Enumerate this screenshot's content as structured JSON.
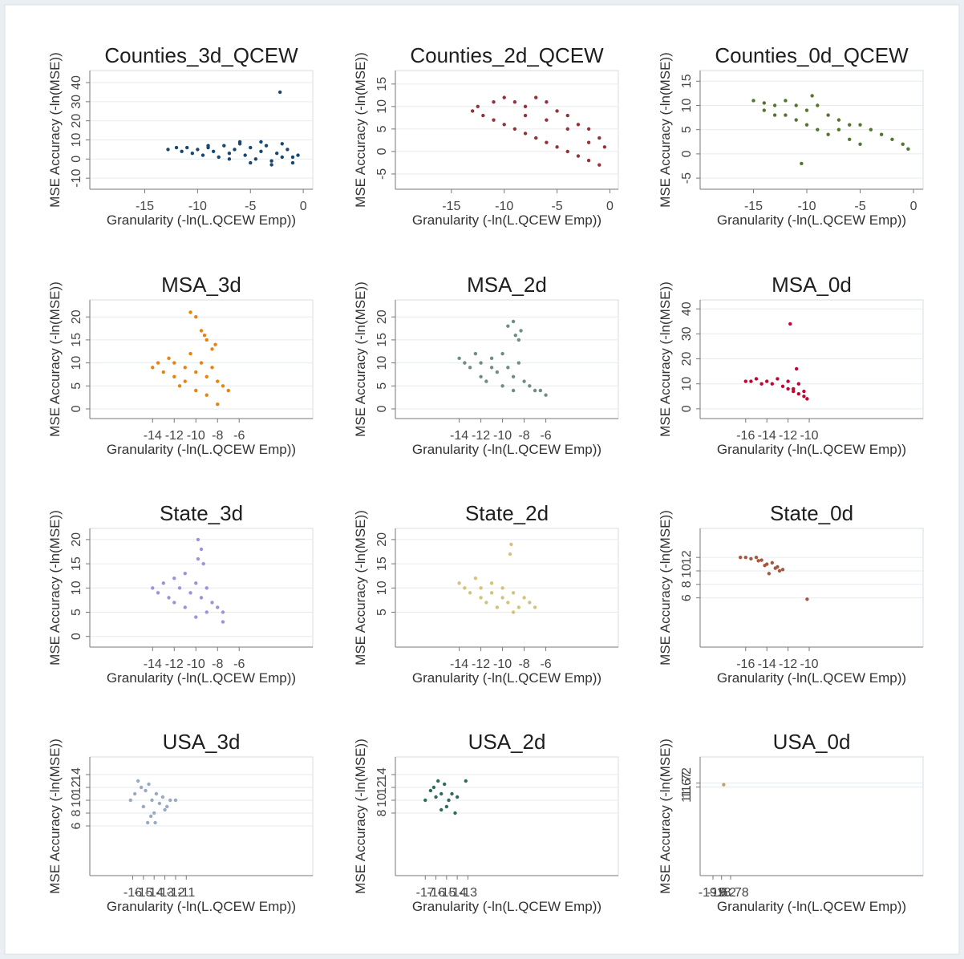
{
  "chart_data": [
    {
      "type": "scatter",
      "title": "Counties_3d_QCEW",
      "x_label": "Granularity (-ln(L.QCEW Emp))",
      "y_label": "MSE Accuracy (-ln(MSE))",
      "color": "#1a476f",
      "grid": true,
      "xlim": [
        -20.2,
        0.9
      ],
      "ylim": [
        -15.8,
        46.3
      ],
      "xticks": [
        -15,
        -10,
        -5,
        0
      ],
      "yticks": [
        -10,
        0,
        10,
        20,
        30,
        40
      ],
      "x": [
        -12.8,
        -12,
        -11.5,
        -11,
        -10.5,
        -10,
        -9.5,
        -9,
        -8.5,
        -8,
        -7.5,
        -7,
        -6.5,
        -6,
        -5.5,
        -5,
        -4.5,
        -4,
        -3.5,
        -3,
        -2.5,
        -2,
        -1.5,
        -1,
        -0.5,
        -9,
        -7,
        -5,
        -3,
        -1,
        -6,
        -4,
        -2,
        -2.2
      ],
      "values": [
        5,
        6,
        4,
        6,
        3,
        5,
        2,
        6,
        4,
        1,
        7,
        3,
        5,
        8,
        2,
        6,
        0,
        4,
        7,
        -1,
        3,
        1,
        5,
        -2,
        2,
        7,
        0,
        -2,
        -3,
        1,
        9,
        9,
        8,
        35
      ]
    },
    {
      "type": "scatter",
      "title": "Counties_2d_QCEW",
      "x_label": "Granularity (-ln(L.QCEW Emp))",
      "y_label": "MSE Accuracy (-ln(MSE))",
      "color": "#90353b",
      "grid": true,
      "xlim": [
        -20.3,
        0.8
      ],
      "ylim": [
        -8.4,
        18
      ],
      "xticks": [
        -15,
        -10,
        -5,
        0
      ],
      "yticks": [
        -5,
        0,
        5,
        10,
        15
      ],
      "x": [
        -13,
        -12.5,
        -12,
        -11,
        -11,
        -10,
        -10,
        -9,
        -9,
        -8,
        -8,
        -7,
        -7,
        -6,
        -6,
        -5,
        -5,
        -4,
        -4,
        -3,
        -3,
        -2,
        -2,
        -1,
        -1,
        -0.5,
        -8,
        -6,
        -4,
        -2
      ],
      "values": [
        9,
        10,
        8,
        11,
        7,
        12,
        6,
        11,
        5,
        10,
        4,
        12,
        3,
        11,
        2,
        9,
        1,
        8,
        0,
        6,
        -1,
        5,
        -2,
        3,
        -3,
        1,
        8,
        7,
        5,
        2
      ]
    },
    {
      "type": "scatter",
      "title": "Counties_0d_QCEW",
      "x_label": "Granularity (-ln(L.QCEW Emp))",
      "y_label": "MSE Accuracy (-ln(MSE))",
      "color": "#55752f",
      "grid": true,
      "xlim": [
        -20,
        0.9
      ],
      "ylim": [
        -7.3,
        17.2
      ],
      "xticks": [
        -15,
        -10,
        -5,
        0
      ],
      "yticks": [
        -5,
        0,
        5,
        10,
        15
      ],
      "x": [
        -15,
        -14,
        -14,
        -13,
        -13,
        -12,
        -12,
        -11,
        -11,
        -10,
        -10,
        -9,
        -9,
        -8,
        -8,
        -7,
        -7,
        -6,
        -6,
        -5,
        -5,
        -4,
        -3,
        -2,
        -1,
        -0.5,
        -9.5,
        -10.5
      ],
      "values": [
        11,
        10.5,
        9,
        10,
        8,
        11,
        8,
        10,
        7,
        9,
        6,
        10,
        5,
        8,
        4,
        7,
        5,
        6,
        3,
        6,
        2,
        5,
        4,
        3,
        2,
        1,
        12,
        -2
      ]
    },
    {
      "type": "scatter",
      "title": "MSA_3d",
      "x_label": "Granularity (-ln(L.QCEW Emp))",
      "y_label": "MSE Accuracy (-ln(MSE))",
      "color": "#e8840e",
      "grid": true,
      "xlim": [
        -19.8,
        0.8
      ],
      "ylim": [
        -2.1,
        23.7
      ],
      "xticks": [
        -14,
        -12,
        -10,
        -8,
        -6
      ],
      "yticks": [
        0,
        5,
        10,
        15,
        20
      ],
      "x": [
        -14,
        -13.5,
        -13,
        -12.5,
        -12,
        -12,
        -11.5,
        -11,
        -11,
        -10.5,
        -10,
        -10,
        -9.5,
        -9,
        -9,
        -8.5,
        -8,
        -7.5,
        -7,
        -10.5,
        -10,
        -9.5,
        -9.2,
        -9,
        -8.5,
        -8.2,
        -8
      ],
      "values": [
        9,
        10,
        8,
        11,
        7,
        10,
        5,
        9,
        6,
        12,
        8,
        4,
        10,
        7,
        3,
        9,
        6,
        5,
        4,
        21,
        20,
        17,
        16,
        15,
        13,
        14,
        1
      ]
    },
    {
      "type": "scatter",
      "title": "MSA_2d",
      "x_label": "Granularity (-ln(L.QCEW Emp))",
      "y_label": "MSE Accuracy (-ln(MSE))",
      "color": "#6e8f7e",
      "grid": true,
      "xlim": [
        -19.9,
        0.7
      ],
      "ylim": [
        -2.1,
        23.7
      ],
      "xticks": [
        -14,
        -12,
        -10,
        -8,
        -6
      ],
      "yticks": [
        0,
        5,
        10,
        15,
        20
      ],
      "x": [
        -14,
        -13.5,
        -13,
        -12.5,
        -12,
        -12,
        -11.5,
        -11,
        -11,
        -10.5,
        -10,
        -10,
        -9.5,
        -9,
        -9,
        -8.5,
        -8,
        -7.5,
        -7,
        -6.5,
        -6,
        -9.5,
        -9,
        -8.8,
        -8.5,
        -8.3
      ],
      "values": [
        11,
        10,
        9,
        12,
        7,
        10,
        6,
        9,
        11,
        8,
        12,
        5,
        9,
        7,
        4,
        10,
        6,
        5,
        4,
        4,
        3,
        18,
        19,
        16,
        15,
        17
      ]
    },
    {
      "type": "scatter",
      "title": "MSA_0d",
      "x_label": "Granularity (-ln(L.QCEW Emp))",
      "y_label": "MSE Accuracy (-ln(MSE))",
      "color": "#c10534",
      "grid": true,
      "xlim": [
        -20.3,
        0.75
      ],
      "ylim": [
        -3.9,
        43.6
      ],
      "xticks": [
        -16,
        -14,
        -12,
        -10
      ],
      "yticks": [
        0,
        10,
        20,
        30,
        40
      ],
      "x": [
        -16,
        -15.5,
        -15,
        -14.5,
        -14,
        -13.5,
        -13,
        -12.5,
        -12,
        -11.5,
        -11,
        -10.5,
        -10.2,
        -12,
        -11.5,
        -11,
        -10.5,
        -11.8,
        -11.2
      ],
      "values": [
        11,
        11,
        12,
        10,
        11,
        10,
        12,
        9,
        11,
        8,
        10,
        7,
        4,
        8,
        7,
        6,
        5,
        34,
        16
      ]
    },
    {
      "type": "scatter",
      "title": "State_3d",
      "x_label": "Granularity (-ln(L.QCEW Emp))",
      "y_label": "MSE Accuracy (-ln(MSE))",
      "color": "#9f92d9",
      "grid": true,
      "xlim": [
        -19.8,
        0.8
      ],
      "ylim": [
        -2.2,
        22.3
      ],
      "xticks": [
        -14,
        -12,
        -10,
        -8,
        -6
      ],
      "yticks": [
        0,
        5,
        10,
        15,
        20
      ],
      "x": [
        -14,
        -13.5,
        -13,
        -12.5,
        -12,
        -12,
        -11.5,
        -11,
        -11,
        -10.5,
        -10,
        -10,
        -9.5,
        -9,
        -9,
        -8.5,
        -8,
        -7.5,
        -7.5,
        -9.8,
        -9.5,
        -9.8,
        -9.3
      ],
      "values": [
        10,
        9,
        11,
        8,
        12,
        7,
        10,
        6,
        13,
        9,
        11,
        4,
        8,
        10,
        5,
        7,
        6,
        5,
        3,
        20,
        18,
        16,
        15
      ]
    },
    {
      "type": "scatter",
      "title": "State_2d",
      "x_label": "Granularity (-ln(L.QCEW Emp))",
      "y_label": "MSE Accuracy (-ln(MSE))",
      "color": "#d3c47b",
      "grid": true,
      "xlim": [
        -19.9,
        0.7
      ],
      "ylim": [
        -2.2,
        22.3
      ],
      "xticks": [
        -14,
        -12,
        -10,
        -8,
        -6
      ],
      "yticks": [
        5,
        10,
        15,
        20
      ],
      "x": [
        -14,
        -13.5,
        -13,
        -12.5,
        -12,
        -12,
        -11.5,
        -11,
        -11,
        -10.5,
        -10,
        -10,
        -9.5,
        -9,
        -9,
        -8.5,
        -8,
        -7.5,
        -7,
        -9.2,
        -9.3
      ],
      "values": [
        11,
        10,
        9,
        12,
        8,
        10,
        7,
        11,
        9,
        6,
        10,
        8,
        7,
        9,
        5,
        6,
        8,
        7,
        6,
        19,
        17
      ]
    },
    {
      "type": "scatter",
      "title": "State_0d",
      "x_label": "Granularity (-ln(L.QCEW Emp))",
      "y_label": "MSE Accuracy (-ln(MSE))",
      "color": "#a5573f",
      "grid": true,
      "xlim": [
        -20.3,
        0.75
      ],
      "ylim": [
        -1.3,
        16.3
      ],
      "xticks": [
        -16,
        -14,
        -12,
        -10
      ],
      "yticks": [
        6,
        8,
        10,
        12
      ],
      "x": [
        -16.5,
        -16,
        -15.5,
        -15,
        -14.8,
        -14.5,
        -14,
        -13.5,
        -13.2,
        -13,
        -12.8,
        -12.5,
        -14.2,
        -13.8,
        -10.2
      ],
      "values": [
        12,
        12,
        11.8,
        12,
        11.5,
        11.6,
        11,
        11.2,
        10.4,
        10.6,
        10,
        10.2,
        10.8,
        9.6,
        5.8
      ]
    },
    {
      "type": "scatter",
      "title": "USA_3d",
      "x_label": "Granularity (-ln(L.QCEW Emp))",
      "y_label": "MSE Accuracy (-ln(MSE))",
      "color": "#9aa9bf",
      "grid": true,
      "xlim": [
        -20,
        0.8
      ],
      "ylim": [
        -1.75,
        16.75
      ],
      "xticks": [
        -16,
        -15,
        -14,
        -13,
        -12,
        -11
      ],
      "yticks": [
        6,
        8,
        10,
        12,
        14
      ],
      "x": [
        -16.2,
        -15.8,
        -15.5,
        -15.2,
        -15,
        -14.8,
        -14.5,
        -14.2,
        -14,
        -13.8,
        -13.5,
        -13.2,
        -13,
        -12.8,
        -12.5,
        -12,
        -14.6,
        -14.3,
        -13.9
      ],
      "values": [
        10,
        11,
        13,
        12,
        9,
        11.5,
        12.5,
        10,
        8,
        11,
        9.5,
        10.5,
        8.5,
        9,
        10,
        10,
        6.5,
        7.5,
        6.5
      ]
    },
    {
      "type": "scatter",
      "title": "USA_2d",
      "x_label": "Granularity (-ln(L.QCEW Emp))",
      "y_label": "MSE Accuracy (-ln(MSE))",
      "color": "#2f6b5b",
      "grid": true,
      "xlim": [
        -19.8,
        1.1
      ],
      "ylim": [
        -1.75,
        16.75
      ],
      "xticks": [
        -17,
        -16,
        -15,
        -14,
        -13
      ],
      "yticks": [
        8,
        10,
        12,
        14
      ],
      "x": [
        -17,
        -16.5,
        -16.2,
        -16,
        -15.8,
        -15.5,
        -15.2,
        -15,
        -14.8,
        -14.5,
        -14.2,
        -13.2,
        -14,
        -15.5
      ],
      "values": [
        10,
        11.5,
        12,
        10.5,
        13,
        11,
        12.5,
        9,
        10,
        11,
        8,
        13,
        10.5,
        8.5
      ]
    },
    {
      "type": "scatter",
      "title": "USA_0d",
      "x_label": "Granularity (-ln(L.QCEW Emp))",
      "y_label": "MSE Accuracy (-ln(MSE))",
      "color": "#c8a06a",
      "grid": true,
      "xlim": [
        -20.2,
        -9.8
      ],
      "ylim": [
        10.55,
        12.05
      ],
      "xticks": [
        -19.6,
        -19.2,
        -18.78
      ],
      "yticks": [
        11.67,
        11.72
      ],
      "x": [
        -19.1
      ],
      "values": [
        11.7
      ]
    }
  ]
}
